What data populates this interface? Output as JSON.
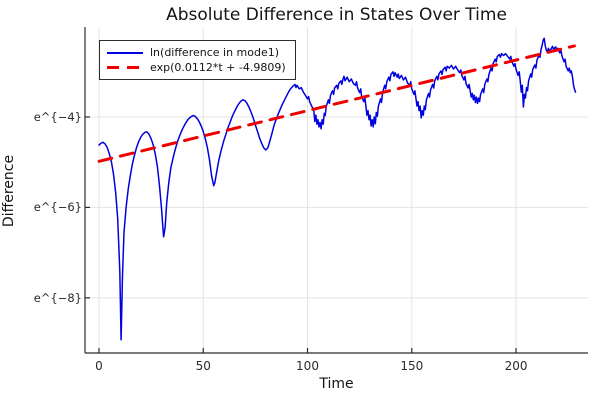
{
  "figure": {
    "title": "Absolute Difference in States Over Time",
    "xlabel": "Time",
    "ylabel": "Difference"
  },
  "chart_data": {
    "type": "line",
    "title": "Absolute Difference in States Over Time",
    "xlabel": "Time",
    "ylabel": "Difference",
    "grid": true,
    "legend_position": "top-left",
    "xlim": [
      -6.7,
      234.5
    ],
    "ylim": [
      -9.22,
      -2.01
    ],
    "xticks": {
      "values": [
        0,
        50,
        100,
        150,
        200
      ],
      "labels": [
        "0",
        "50",
        "100",
        "150",
        "200"
      ]
    },
    "yticks": {
      "values": [
        -4,
        -6,
        -8
      ],
      "labels": [
        "e^{−4}",
        "e^{−6}",
        "e^{−8}"
      ]
    },
    "colors": {
      "grid": "#e4e4e4",
      "axis": "#2b2b2b",
      "text": "#141414",
      "background": "#ffffff"
    },
    "series": [
      {
        "name": "ln(difference in mode1)",
        "color": "#0000e0",
        "style": "solid",
        "width": 1.5,
        "points": [
          [
            0,
            -4.62
          ],
          [
            1,
            -4.58
          ],
          [
            2,
            -4.56
          ],
          [
            3,
            -4.6
          ],
          [
            4,
            -4.68
          ],
          [
            5,
            -4.82
          ],
          [
            6,
            -5.0
          ],
          [
            7,
            -5.28
          ],
          [
            8,
            -5.68
          ],
          [
            9,
            -6.25
          ],
          [
            10,
            -7.4
          ],
          [
            10.6,
            -8.93
          ],
          [
            11.3,
            -7.5
          ],
          [
            12,
            -6.55
          ],
          [
            13,
            -6.0
          ],
          [
            14,
            -5.6
          ],
          [
            15,
            -5.3
          ],
          [
            16,
            -5.05
          ],
          [
            17,
            -4.85
          ],
          [
            18,
            -4.68
          ],
          [
            19,
            -4.55
          ],
          [
            20,
            -4.45
          ],
          [
            21,
            -4.38
          ],
          [
            22,
            -4.34
          ],
          [
            23,
            -4.33
          ],
          [
            24,
            -4.38
          ],
          [
            25,
            -4.48
          ],
          [
            26,
            -4.62
          ],
          [
            27,
            -4.82
          ],
          [
            28,
            -5.1
          ],
          [
            29,
            -5.5
          ],
          [
            30,
            -6.02
          ],
          [
            31,
            -6.65
          ],
          [
            31.7,
            -6.45
          ],
          [
            32.5,
            -5.9
          ],
          [
            33.5,
            -5.45
          ],
          [
            34.5,
            -5.12
          ],
          [
            36,
            -4.82
          ],
          [
            37,
            -4.65
          ],
          [
            38,
            -4.5
          ],
          [
            39,
            -4.38
          ],
          [
            40,
            -4.27
          ],
          [
            41,
            -4.18
          ],
          [
            42,
            -4.1
          ],
          [
            43,
            -4.04
          ],
          [
            44,
            -4.0
          ],
          [
            45,
            -3.97
          ],
          [
            46,
            -3.98
          ],
          [
            47,
            -4.03
          ],
          [
            48,
            -4.1
          ],
          [
            49,
            -4.2
          ],
          [
            50,
            -4.32
          ],
          [
            51,
            -4.48
          ],
          [
            52,
            -4.68
          ],
          [
            53,
            -4.95
          ],
          [
            54,
            -5.3
          ],
          [
            55,
            -5.52
          ],
          [
            55.6,
            -5.45
          ],
          [
            56.5,
            -5.2
          ],
          [
            57.5,
            -4.95
          ],
          [
            58.5,
            -4.75
          ],
          [
            60,
            -4.5
          ],
          [
            61,
            -4.36
          ],
          [
            62,
            -4.22
          ],
          [
            63,
            -4.1
          ],
          [
            64,
            -3.98
          ],
          [
            65,
            -3.88
          ],
          [
            66,
            -3.79
          ],
          [
            67,
            -3.71
          ],
          [
            68,
            -3.65
          ],
          [
            69,
            -3.62
          ],
          [
            70,
            -3.64
          ],
          [
            71,
            -3.7
          ],
          [
            72,
            -3.79
          ],
          [
            73,
            -3.9
          ],
          [
            74,
            -4.03
          ],
          [
            75,
            -4.18
          ],
          [
            76,
            -4.32
          ],
          [
            77,
            -4.46
          ],
          [
            78,
            -4.58
          ],
          [
            79,
            -4.68
          ],
          [
            80,
            -4.73
          ],
          [
            81,
            -4.68
          ],
          [
            82,
            -4.52
          ],
          [
            83,
            -4.35
          ],
          [
            84,
            -4.18
          ],
          [
            85,
            -4.05
          ],
          [
            86,
            -3.93
          ],
          [
            87,
            -3.82
          ],
          [
            88,
            -3.71
          ],
          [
            89,
            -3.62
          ],
          [
            90,
            -3.53
          ],
          [
            91,
            -3.44
          ],
          [
            92,
            -3.37
          ],
          [
            93,
            -3.32
          ],
          [
            94,
            -3.28
          ],
          [
            94.5,
            -3.35
          ],
          [
            95,
            -3.3
          ],
          [
            96,
            -3.38
          ],
          [
            97,
            -3.35
          ],
          [
            98,
            -3.45
          ],
          [
            99,
            -3.52
          ],
          [
            100,
            -3.6
          ],
          [
            100.5,
            -3.55
          ],
          [
            101,
            -3.66
          ],
          [
            102,
            -3.76
          ],
          [
            103,
            -3.86
          ],
          [
            103.5,
            -4.1
          ],
          [
            104,
            -3.96
          ],
          [
            104.5,
            -4.16
          ],
          [
            105,
            -4.06
          ],
          [
            105.5,
            -4.22
          ],
          [
            106,
            -4.12
          ],
          [
            106.5,
            -4.26
          ],
          [
            107,
            -4.06
          ],
          [
            107.5,
            -4.16
          ],
          [
            108,
            -3.92
          ],
          [
            108.5,
            -3.97
          ],
          [
            109,
            -3.76
          ],
          [
            110,
            -3.62
          ],
          [
            110.5,
            -3.7
          ],
          [
            111,
            -3.52
          ],
          [
            112,
            -3.42
          ],
          [
            112.5,
            -3.5
          ],
          [
            113,
            -3.36
          ],
          [
            114,
            -3.3
          ],
          [
            114.5,
            -3.38
          ],
          [
            115,
            -3.26
          ],
          [
            116,
            -3.2
          ],
          [
            116.5,
            -3.28
          ],
          [
            117,
            -3.16
          ],
          [
            117.5,
            -3.1
          ],
          [
            118,
            -3.2
          ],
          [
            119,
            -3.12
          ],
          [
            120,
            -3.22
          ],
          [
            121,
            -3.16
          ],
          [
            122,
            -3.26
          ],
          [
            123,
            -3.3
          ],
          [
            123.5,
            -3.22
          ],
          [
            124,
            -3.36
          ],
          [
            125,
            -3.46
          ],
          [
            125.5,
            -3.38
          ],
          [
            126,
            -3.56
          ],
          [
            127,
            -3.66
          ],
          [
            127.5,
            -3.58
          ],
          [
            128,
            -3.76
          ],
          [
            128.5,
            -3.96
          ],
          [
            129,
            -3.86
          ],
          [
            129.5,
            -4.06
          ],
          [
            130,
            -3.96
          ],
          [
            130.5,
            -4.2
          ],
          [
            131,
            -4.06
          ],
          [
            131.5,
            -4.22
          ],
          [
            132,
            -4.0
          ],
          [
            132.5,
            -4.15
          ],
          [
            133,
            -3.9
          ],
          [
            133.5,
            -3.98
          ],
          [
            134,
            -3.76
          ],
          [
            135,
            -3.6
          ],
          [
            135.5,
            -3.68
          ],
          [
            136,
            -3.46
          ],
          [
            137,
            -3.3
          ],
          [
            137.5,
            -3.38
          ],
          [
            138,
            -3.22
          ],
          [
            139,
            -3.12
          ],
          [
            139.5,
            -3.2
          ],
          [
            140,
            -3.06
          ],
          [
            141,
            -3.0
          ],
          [
            141.5,
            -3.1
          ],
          [
            142,
            -3.02
          ],
          [
            143,
            -3.12
          ],
          [
            143.5,
            -3.05
          ],
          [
            144,
            -3.15
          ],
          [
            145,
            -3.08
          ],
          [
            146,
            -3.18
          ],
          [
            147,
            -3.12
          ],
          [
            148,
            -3.25
          ],
          [
            149,
            -3.3
          ],
          [
            149.5,
            -3.22
          ],
          [
            150,
            -3.38
          ],
          [
            151,
            -3.5
          ],
          [
            151.5,
            -3.42
          ],
          [
            152,
            -3.6
          ],
          [
            152.5,
            -3.76
          ],
          [
            153,
            -3.66
          ],
          [
            153.5,
            -3.86
          ],
          [
            154,
            -3.76
          ],
          [
            154.5,
            -4.02
          ],
          [
            155,
            -3.86
          ],
          [
            155.5,
            -3.96
          ],
          [
            156,
            -3.76
          ],
          [
            156.5,
            -3.84
          ],
          [
            157,
            -3.62
          ],
          [
            158,
            -3.48
          ],
          [
            158.5,
            -3.56
          ],
          [
            159,
            -3.4
          ],
          [
            160,
            -3.28
          ],
          [
            160.5,
            -3.36
          ],
          [
            161,
            -3.2
          ],
          [
            162,
            -3.1
          ],
          [
            162.5,
            -3.18
          ],
          [
            163,
            -3.05
          ],
          [
            164,
            -2.98
          ],
          [
            164.5,
            -3.06
          ],
          [
            165,
            -2.95
          ],
          [
            166,
            -2.9
          ],
          [
            166.5,
            -2.98
          ],
          [
            167,
            -2.88
          ],
          [
            168,
            -2.92
          ],
          [
            169,
            -2.86
          ],
          [
            170,
            -2.94
          ],
          [
            171,
            -2.88
          ],
          [
            172,
            -2.96
          ],
          [
            173,
            -3.02
          ],
          [
            173.5,
            -2.96
          ],
          [
            174,
            -3.08
          ],
          [
            175,
            -3.18
          ],
          [
            175.5,
            -3.1
          ],
          [
            176,
            -3.26
          ],
          [
            177,
            -3.36
          ],
          [
            177.5,
            -3.28
          ],
          [
            178,
            -3.42
          ],
          [
            178.5,
            -3.56
          ],
          [
            179,
            -3.48
          ],
          [
            179.5,
            -3.62
          ],
          [
            180,
            -3.52
          ],
          [
            180.5,
            -3.68
          ],
          [
            181,
            -3.56
          ],
          [
            181.5,
            -3.7
          ],
          [
            182,
            -3.58
          ],
          [
            182.5,
            -3.66
          ],
          [
            183,
            -3.5
          ],
          [
            184,
            -3.38
          ],
          [
            184.5,
            -3.46
          ],
          [
            185,
            -3.28
          ],
          [
            186,
            -3.16
          ],
          [
            186.5,
            -3.22
          ],
          [
            187,
            -3.06
          ],
          [
            188,
            -2.92
          ],
          [
            188.5,
            -2.98
          ],
          [
            189,
            -2.82
          ],
          [
            190,
            -2.72
          ],
          [
            190.5,
            -2.78
          ],
          [
            191,
            -2.66
          ],
          [
            192,
            -2.62
          ],
          [
            192.5,
            -2.68
          ],
          [
            193,
            -2.6
          ],
          [
            194,
            -2.64
          ],
          [
            195,
            -2.6
          ],
          [
            196,
            -2.66
          ],
          [
            197,
            -2.72
          ],
          [
            197.5,
            -2.66
          ],
          [
            198,
            -2.78
          ],
          [
            199,
            -2.88
          ],
          [
            199.5,
            -2.82
          ],
          [
            200,
            -2.95
          ],
          [
            201,
            -3.08
          ],
          [
            201.5,
            -3.0
          ],
          [
            202,
            -3.2
          ],
          [
            202.5,
            -3.45
          ],
          [
            203,
            -3.3
          ],
          [
            203.5,
            -3.78
          ],
          [
            204,
            -3.5
          ],
          [
            204.5,
            -3.58
          ],
          [
            205,
            -3.35
          ],
          [
            205.5,
            -3.42
          ],
          [
            206,
            -3.2
          ],
          [
            207,
            -3.05
          ],
          [
            207.5,
            -3.12
          ],
          [
            208,
            -2.95
          ],
          [
            209,
            -2.85
          ],
          [
            209.5,
            -2.92
          ],
          [
            210,
            -2.75
          ],
          [
            211,
            -2.62
          ],
          [
            211.5,
            -2.68
          ],
          [
            212,
            -2.5
          ],
          [
            212.5,
            -2.42
          ],
          [
            213,
            -2.3
          ],
          [
            213.5,
            -2.26
          ],
          [
            214,
            -2.42
          ],
          [
            214.5,
            -2.52
          ],
          [
            215,
            -2.56
          ],
          [
            215.5,
            -2.48
          ],
          [
            216,
            -2.55
          ],
          [
            217,
            -2.48
          ],
          [
            217.5,
            -2.44
          ],
          [
            218,
            -2.5
          ],
          [
            219,
            -2.45
          ],
          [
            219.5,
            -2.52
          ],
          [
            220,
            -2.48
          ],
          [
            221,
            -2.58
          ],
          [
            221.5,
            -2.52
          ],
          [
            222,
            -2.65
          ],
          [
            223,
            -2.78
          ],
          [
            223.5,
            -2.72
          ],
          [
            224,
            -2.88
          ],
          [
            225,
            -2.98
          ],
          [
            225.5,
            -2.92
          ],
          [
            226,
            -3.02
          ],
          [
            226.5,
            -2.98
          ],
          [
            227,
            -3.1
          ],
          [
            227.5,
            -3.28
          ],
          [
            228,
            -3.38
          ],
          [
            228.5,
            -3.45
          ]
        ]
      },
      {
        "name": "exp(0.0112*t + -4.9809)",
        "color": "#ee0000",
        "style": "dash",
        "width": 3,
        "points": [
          [
            0,
            -4.9809
          ],
          [
            228,
            -2.4273
          ]
        ]
      }
    ]
  }
}
